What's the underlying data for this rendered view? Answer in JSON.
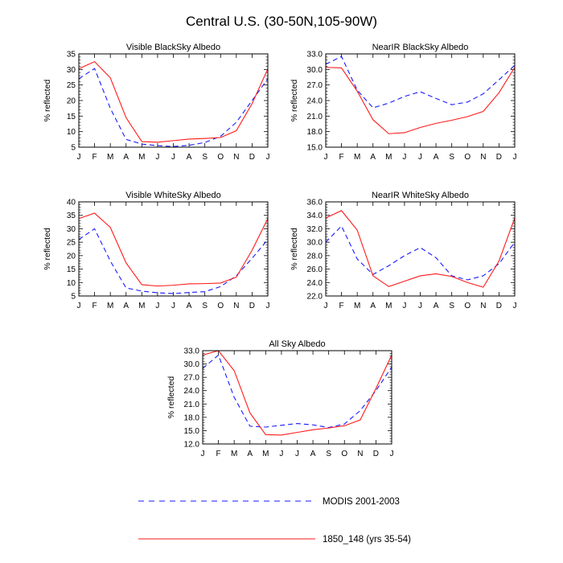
{
  "figure_title": "Central U.S. (30-50N,105-90W)",
  "months": [
    "J",
    "F",
    "M",
    "A",
    "M",
    "J",
    "J",
    "A",
    "S",
    "O",
    "N",
    "D",
    "J"
  ],
  "colors": {
    "modis": "#1a1aff",
    "model": "#ff1a1a",
    "axis": "#000000"
  },
  "legend": [
    {
      "label": "MODIS 2001-2003",
      "style": "dashed",
      "color": "#1a1aff"
    },
    {
      "label": "1850_148 (yrs 35-54)",
      "style": "solid",
      "color": "#ff1a1a"
    }
  ],
  "chart_data": [
    {
      "type": "line",
      "title": "Visible BlackSky Albedo",
      "ylabel": "% reflected",
      "ylim": [
        5,
        35
      ],
      "yticks": [
        "5",
        "10",
        "15",
        "20",
        "25",
        "30",
        "35"
      ],
      "x": [
        "J",
        "F",
        "M",
        "A",
        "M",
        "J",
        "J",
        "A",
        "S",
        "O",
        "N",
        "D",
        "J"
      ],
      "series": [
        {
          "name": "MODIS 2001-2003",
          "values": [
            27,
            30.3,
            17.5,
            7.5,
            6.0,
            5.5,
            5.2,
            5.6,
            6.5,
            8.5,
            13,
            20,
            27
          ]
        },
        {
          "name": "1850_148 (yrs 35-54)",
          "values": [
            30.2,
            32.5,
            27.3,
            14.5,
            6.8,
            6.6,
            7.1,
            7.6,
            7.8,
            8.1,
            10.3,
            19,
            30.2
          ]
        }
      ]
    },
    {
      "type": "line",
      "title": "NearIR BlackSky Albedo",
      "ylabel": "% reflected",
      "ylim": [
        15,
        33
      ],
      "yticks": [
        "15.0",
        "18.0",
        "21.0",
        "24.0",
        "27.0",
        "30.0",
        "33.0"
      ],
      "x": [
        "J",
        "F",
        "M",
        "A",
        "M",
        "J",
        "J",
        "A",
        "S",
        "O",
        "N",
        "D",
        "J"
      ],
      "series": [
        {
          "name": "MODIS 2001-2003",
          "values": [
            31,
            32.5,
            26,
            22.6,
            23.5,
            24.8,
            25.7,
            24.4,
            23.2,
            23.7,
            25.3,
            28,
            30.8
          ]
        },
        {
          "name": "1850_148 (yrs 35-54)",
          "values": [
            30.4,
            30.3,
            25.8,
            20.3,
            17.6,
            17.8,
            18.8,
            19.6,
            20.2,
            20.9,
            21.9,
            25.5,
            30.4
          ]
        }
      ]
    },
    {
      "type": "line",
      "title": "Visible WhiteSky Albedo",
      "ylabel": "% reflected",
      "ylim": [
        5,
        40
      ],
      "yticks": [
        "5",
        "10",
        "15",
        "20",
        "25",
        "30",
        "35",
        "40"
      ],
      "x": [
        "J",
        "F",
        "M",
        "A",
        "M",
        "J",
        "J",
        "A",
        "S",
        "O",
        "N",
        "D",
        "J"
      ],
      "series": [
        {
          "name": "MODIS 2001-2003",
          "values": [
            26,
            30,
            18,
            8,
            6.8,
            6.2,
            5.9,
            6.3,
            6.6,
            8.5,
            12.5,
            19,
            26
          ]
        },
        {
          "name": "1850_148 (yrs 35-54)",
          "values": [
            33.8,
            35.8,
            30.5,
            17.3,
            9.2,
            8.7,
            9.0,
            9.5,
            9.6,
            9.8,
            12.0,
            22,
            33.8
          ]
        }
      ]
    },
    {
      "type": "line",
      "title": "NearIR WhiteSky Albedo",
      "ylabel": "% reflected",
      "ylim": [
        22,
        36
      ],
      "yticks": [
        "22.0",
        "24.0",
        "26.0",
        "28.0",
        "30.0",
        "32.0",
        "34.0",
        "36.0"
      ],
      "x": [
        "J",
        "F",
        "M",
        "A",
        "M",
        "J",
        "J",
        "A",
        "S",
        "O",
        "N",
        "D",
        "J"
      ],
      "series": [
        {
          "name": "MODIS 2001-2003",
          "values": [
            30,
            32.4,
            27.5,
            25.2,
            26.5,
            28,
            29.2,
            27.7,
            25.0,
            24.4,
            25.0,
            26.8,
            30
          ]
        },
        {
          "name": "1850_148 (yrs 35-54)",
          "values": [
            33.6,
            34.7,
            31.8,
            25.0,
            23.4,
            24.2,
            25.0,
            25.3,
            24.9,
            24.0,
            23.3,
            27.2,
            33.6
          ]
        }
      ]
    },
    {
      "type": "line",
      "title": "All Sky Albedo",
      "ylabel": "% reflected",
      "ylim": [
        12,
        33
      ],
      "yticks": [
        "12.0",
        "15.0",
        "18.0",
        "21.0",
        "24.0",
        "27.0",
        "30.0",
        "33.0"
      ],
      "x": [
        "J",
        "F",
        "M",
        "A",
        "M",
        "J",
        "J",
        "A",
        "S",
        "O",
        "N",
        "D",
        "J"
      ],
      "series": [
        {
          "name": "MODIS 2001-2003",
          "values": [
            29,
            32,
            22.5,
            16.0,
            15.8,
            16.2,
            16.6,
            16.3,
            15.7,
            16.5,
            19.5,
            24,
            29.3
          ]
        },
        {
          "name": "1850_148 (yrs 35-54)",
          "values": [
            32,
            33,
            28.5,
            19.0,
            14.1,
            14.0,
            14.6,
            15.2,
            15.6,
            16.1,
            17.4,
            24.5,
            32
          ]
        }
      ]
    }
  ]
}
